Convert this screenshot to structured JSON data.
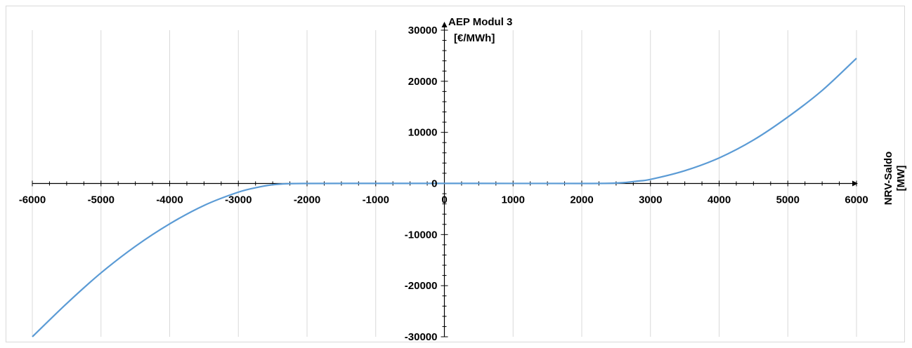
{
  "chart_data": {
    "type": "line",
    "title": "",
    "ylabel_lines": [
      "AEP Modul 3",
      "[€/MWh]"
    ],
    "xlabel_lines": [
      "NRV-Saldo",
      "[MW]"
    ],
    "xlim": [
      -6000,
      6000
    ],
    "ylim": [
      -30000,
      30000
    ],
    "x_ticks": [
      -6000,
      -5000,
      -4000,
      -3000,
      -2000,
      -1000,
      0,
      1000,
      2000,
      3000,
      4000,
      5000,
      6000
    ],
    "y_ticks": [
      -30000,
      -20000,
      -10000,
      0,
      10000,
      20000,
      30000
    ],
    "grid": "vertical",
    "legend": "none",
    "series": [
      {
        "color": "#5b9bd5",
        "x": [
          -6000,
          -5500,
          -5000,
          -4500,
          -4000,
          -3500,
          -3000,
          -2700,
          -2500,
          -2300,
          -2000,
          -1000,
          0,
          1000,
          2000,
          2400,
          2600,
          2800,
          3000,
          3500,
          4000,
          4500,
          5000,
          5500,
          6000
        ],
        "y": [
          -30000,
          -23500,
          -17500,
          -12300,
          -7900,
          -4300,
          -1700,
          -700,
          -250,
          -50,
          0,
          20,
          20,
          10,
          0,
          30,
          150,
          450,
          800,
          2500,
          5000,
          8500,
          13000,
          18200,
          24500
        ]
      }
    ]
  }
}
